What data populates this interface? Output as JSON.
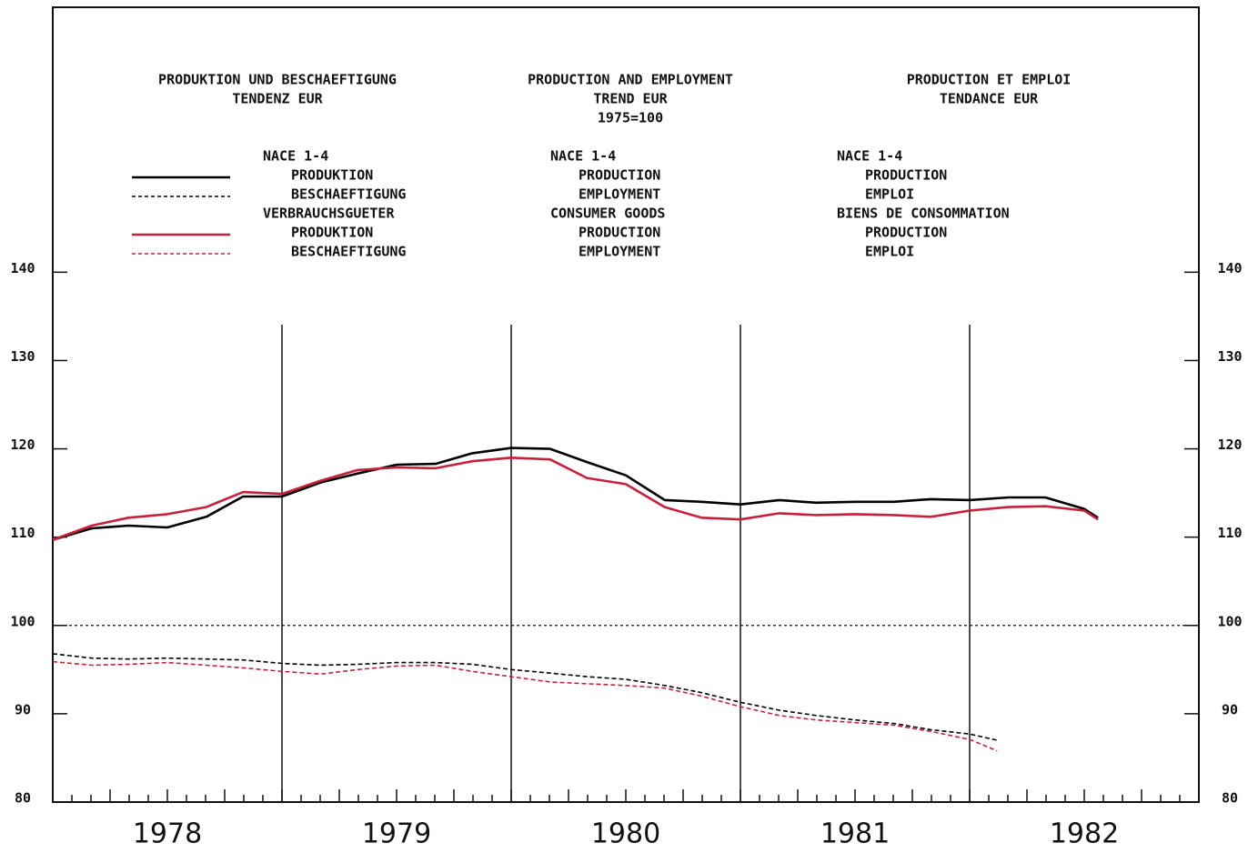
{
  "chart_data": {
    "type": "line",
    "title_blocks": [
      [
        "PRODUKTION UND BESCHAEFTIGUNG",
        "TENDENZ EUR"
      ],
      [
        "PRODUCTION AND EMPLOYMENT",
        "TREND EUR",
        "1975=100"
      ],
      [
        "PRODUCTION ET EMPLOI",
        "TENDANCE EUR"
      ]
    ],
    "groups": [
      {
        "de": "NACE 1-4",
        "en": "NACE 1-4",
        "fr": "NACE 1-4"
      },
      {
        "de": "VERBRAUCHSGUETER",
        "en": "CONSUMER GOODS",
        "fr": "BIENS DE CONSOMMATION"
      }
    ],
    "xlim": [
      1978,
      1983
    ],
    "xticks": [
      {
        "value": 1978.5,
        "label": "1978"
      },
      {
        "value": 1979.5,
        "label": "1979"
      },
      {
        "value": 1980.5,
        "label": "1980"
      },
      {
        "value": 1981.5,
        "label": "1981"
      },
      {
        "value": 1982.5,
        "label": "1982"
      }
    ],
    "xminor_per_year": 12,
    "vlines": [
      1979,
      1980,
      1981,
      1982
    ],
    "ylim": [
      80,
      170
    ],
    "yticks": [
      80,
      90,
      100,
      110,
      120,
      130,
      140
    ],
    "hline": 100,
    "series": [
      {
        "name": "PRODUKTION",
        "name_en": "PRODUCTION",
        "name_fr": "PRODUCTION",
        "group": 0,
        "color": "#000000",
        "dashed": false,
        "x": [
          1978.0,
          1978.17,
          1978.33,
          1978.5,
          1978.67,
          1978.83,
          1979.0,
          1979.17,
          1979.33,
          1979.5,
          1979.67,
          1979.83,
          1980.0,
          1980.17,
          1980.33,
          1980.5,
          1980.67,
          1980.83,
          1981.0,
          1981.17,
          1981.33,
          1981.5,
          1981.67,
          1981.83,
          1982.0,
          1982.17,
          1982.33,
          1982.5,
          1982.56
        ],
        "values": [
          109.7,
          111.0,
          111.3,
          111.1,
          112.3,
          114.6,
          114.6,
          116.2,
          117.2,
          118.2,
          118.3,
          119.5,
          120.1,
          120.0,
          118.5,
          117.0,
          114.2,
          114.0,
          113.7,
          114.2,
          113.9,
          114.0,
          114.0,
          114.3,
          114.2,
          114.5,
          114.5,
          113.2,
          112.2
        ]
      },
      {
        "name": "BESCHAEFTIGUNG",
        "name_en": "EMPLOYMENT",
        "name_fr": "EMPLOI",
        "group": 0,
        "color": "#000000",
        "dashed": true,
        "x": [
          1978.0,
          1978.17,
          1978.33,
          1978.5,
          1978.67,
          1978.83,
          1979.0,
          1979.17,
          1979.33,
          1979.5,
          1979.67,
          1979.83,
          1980.0,
          1980.17,
          1980.33,
          1980.5,
          1980.67,
          1980.83,
          1981.0,
          1981.17,
          1981.33,
          1981.5,
          1981.67,
          1981.83,
          1982.0,
          1982.12
        ],
        "values": [
          96.8,
          96.3,
          96.2,
          96.3,
          96.2,
          96.1,
          95.7,
          95.5,
          95.6,
          95.8,
          95.8,
          95.6,
          95.0,
          94.6,
          94.2,
          93.9,
          93.2,
          92.4,
          91.3,
          90.4,
          89.8,
          89.3,
          88.9,
          88.2,
          87.7,
          87.0
        ]
      },
      {
        "name": "PRODUKTION",
        "name_en": "PRODUCTION",
        "name_fr": "PRODUCTION",
        "group": 1,
        "color": "#c8203c",
        "dashed": false,
        "x": [
          1978.0,
          1978.17,
          1978.33,
          1978.5,
          1978.67,
          1978.83,
          1979.0,
          1979.17,
          1979.33,
          1979.5,
          1979.67,
          1979.83,
          1980.0,
          1980.17,
          1980.33,
          1980.5,
          1980.67,
          1980.83,
          1981.0,
          1981.17,
          1981.33,
          1981.5,
          1981.67,
          1981.83,
          1982.0,
          1982.17,
          1982.33,
          1982.5,
          1982.56
        ],
        "values": [
          109.7,
          111.3,
          112.2,
          112.6,
          113.4,
          115.1,
          114.9,
          116.4,
          117.6,
          117.9,
          117.8,
          118.6,
          119.0,
          118.8,
          116.7,
          116.0,
          113.4,
          112.2,
          112.0,
          112.7,
          112.5,
          112.6,
          112.5,
          112.3,
          113.0,
          113.4,
          113.5,
          113.0,
          112.0
        ]
      },
      {
        "name": "BESCHAEFTIGUNG",
        "name_en": "EMPLOYMENT",
        "name_fr": "EMPLOI",
        "group": 1,
        "color": "#c8203c",
        "dashed": true,
        "x": [
          1978.0,
          1978.17,
          1978.33,
          1978.5,
          1978.67,
          1978.83,
          1979.0,
          1979.17,
          1979.33,
          1979.5,
          1979.67,
          1979.83,
          1980.0,
          1980.17,
          1980.33,
          1980.5,
          1980.67,
          1980.83,
          1981.0,
          1981.17,
          1981.33,
          1981.5,
          1981.67,
          1981.83,
          1982.0,
          1982.12
        ],
        "values": [
          95.9,
          95.5,
          95.6,
          95.8,
          95.5,
          95.2,
          94.8,
          94.5,
          95.0,
          95.4,
          95.5,
          94.8,
          94.2,
          93.6,
          93.4,
          93.2,
          92.9,
          92.0,
          90.8,
          89.8,
          89.3,
          89.0,
          88.7,
          88.0,
          87.1,
          85.8
        ]
      }
    ]
  }
}
